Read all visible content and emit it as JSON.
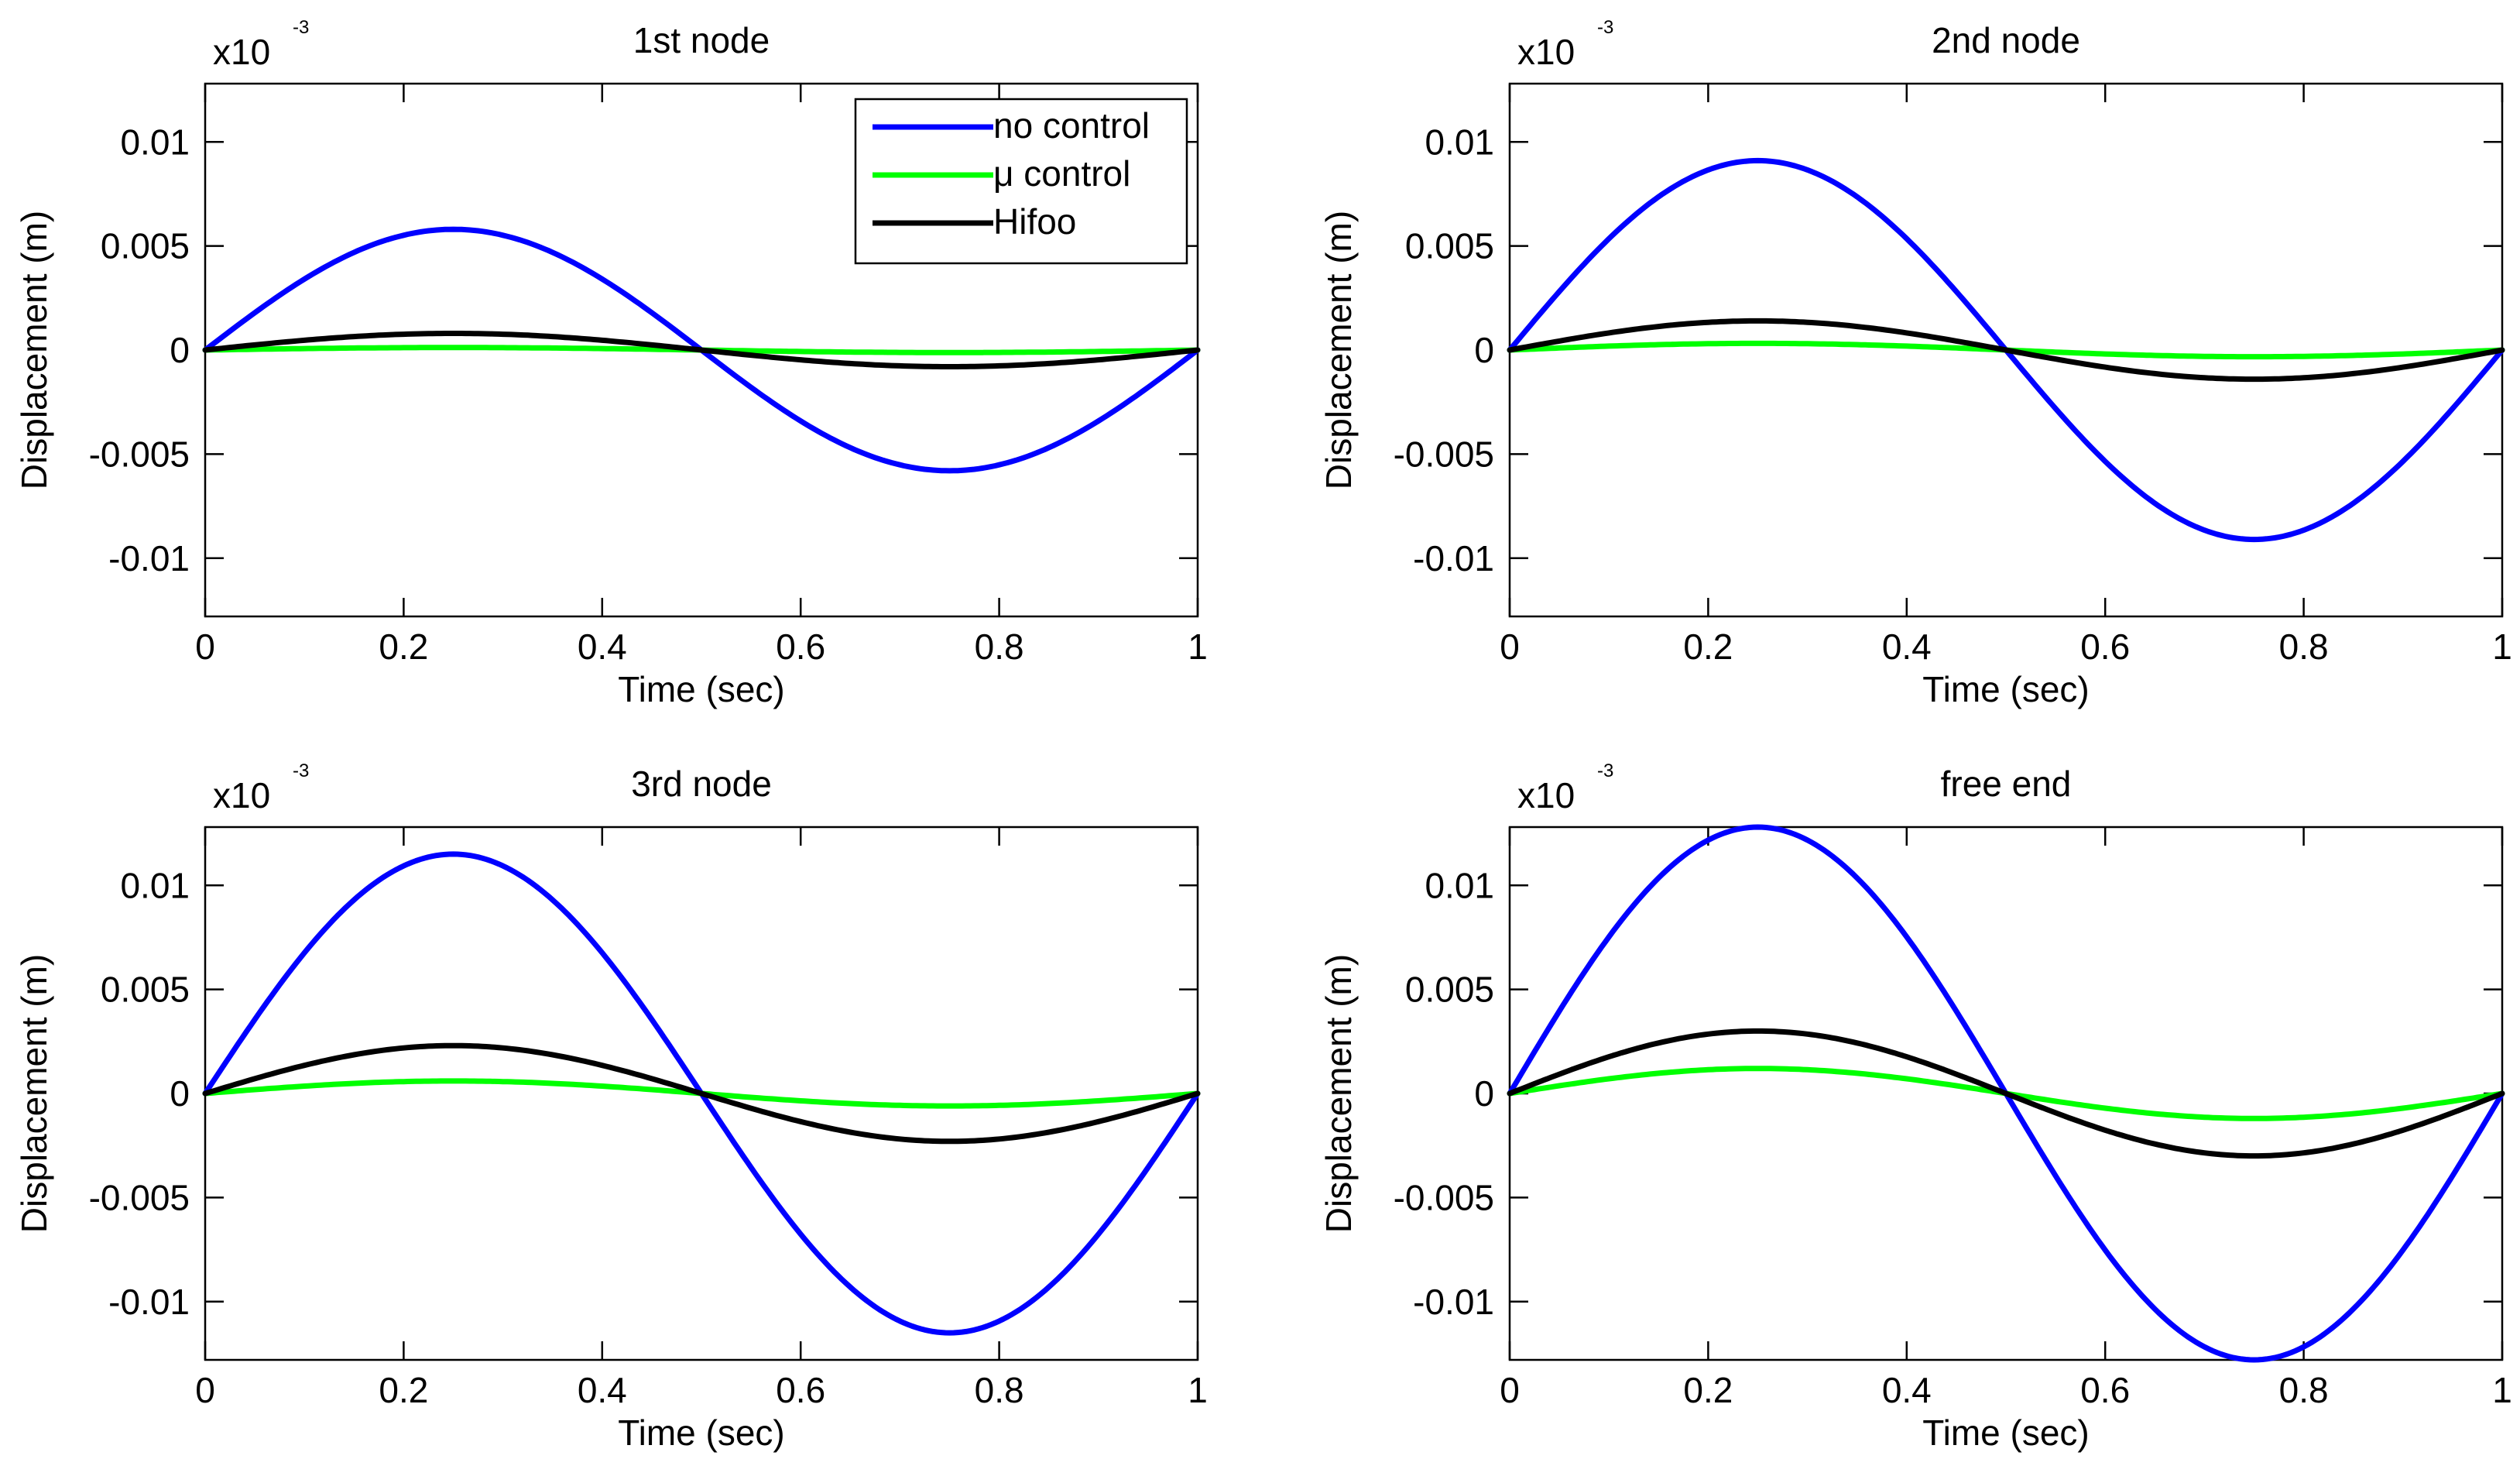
{
  "figure": {
    "background": "#ffffff"
  },
  "chart_data": [
    {
      "type": "line",
      "title": "1st node",
      "xlabel": "Time (sec)",
      "ylabel": "Displacement (m)",
      "exponent_label": "x10",
      "exponent": "-3",
      "xlim": [
        0,
        1
      ],
      "ylim": [
        -0.0128,
        0.0128
      ],
      "xticks": [
        0,
        0.2,
        0.4,
        0.6,
        0.8,
        1
      ],
      "xtick_labels": [
        "0",
        "0.2",
        "0.4",
        "0.6",
        "0.8",
        "1"
      ],
      "yticks": [
        0.01,
        0.005,
        0,
        -0.005,
        -0.01
      ],
      "ytick_labels": [
        "0.01",
        "0.005",
        "0",
        "-0.005",
        "-0.01"
      ],
      "grid": false,
      "legend": {
        "show": true,
        "location": "top-right"
      },
      "series": [
        {
          "name": "no control",
          "color": "#0000ff",
          "amplitude": 0.0058
        },
        {
          "name": "μ control",
          "color": "#00ff00",
          "amplitude": 0.00012
        },
        {
          "name": "Hifoo",
          "color": "#000000",
          "amplitude": 0.0008
        }
      ]
    },
    {
      "type": "line",
      "title": "2nd node",
      "xlabel": "Time (sec)",
      "ylabel": "Displacement (m)",
      "exponent_label": "x10",
      "exponent": "-3",
      "xlim": [
        0,
        1
      ],
      "ylim": [
        -0.0128,
        0.0128
      ],
      "xticks": [
        0,
        0.2,
        0.4,
        0.6,
        0.8,
        1
      ],
      "xtick_labels": [
        "0",
        "0.2",
        "0.4",
        "0.6",
        "0.8",
        "1"
      ],
      "yticks": [
        0.01,
        0.005,
        0,
        -0.005,
        -0.01
      ],
      "ytick_labels": [
        "0.01",
        "0.005",
        "0",
        "-0.005",
        "-0.01"
      ],
      "grid": false,
      "legend": {
        "show": false
      },
      "series": [
        {
          "name": "no control",
          "color": "#0000ff",
          "amplitude": 0.0091
        },
        {
          "name": "μ control",
          "color": "#00ff00",
          "amplitude": 0.00032
        },
        {
          "name": "Hifoo",
          "color": "#000000",
          "amplitude": 0.0014
        }
      ]
    },
    {
      "type": "line",
      "title": "3rd node",
      "xlabel": "Time (sec)",
      "ylabel": "Displacement (m)",
      "exponent_label": "x10",
      "exponent": "-3",
      "xlim": [
        0,
        1
      ],
      "ylim": [
        -0.0128,
        0.0128
      ],
      "xticks": [
        0,
        0.2,
        0.4,
        0.6,
        0.8,
        1
      ],
      "xtick_labels": [
        "0",
        "0.2",
        "0.4",
        "0.6",
        "0.8",
        "1"
      ],
      "yticks": [
        0.01,
        0.005,
        0,
        -0.005,
        -0.01
      ],
      "ytick_labels": [
        "0.01",
        "0.005",
        "0",
        "-0.005",
        "-0.01"
      ],
      "grid": false,
      "legend": {
        "show": false
      },
      "series": [
        {
          "name": "no control",
          "color": "#0000ff",
          "amplitude": 0.0115
        },
        {
          "name": "μ control",
          "color": "#00ff00",
          "amplitude": 0.0006
        },
        {
          "name": "Hifoo",
          "color": "#000000",
          "amplitude": 0.0023
        }
      ]
    },
    {
      "type": "line",
      "title": "free end",
      "xlabel": "Time (sec)",
      "ylabel": "Displacement (m)",
      "exponent_label": "x10",
      "exponent": "-3",
      "xlim": [
        0,
        1
      ],
      "ylim": [
        -0.0128,
        0.0128
      ],
      "xticks": [
        0,
        0.2,
        0.4,
        0.6,
        0.8,
        1
      ],
      "xtick_labels": [
        "0",
        "0.2",
        "0.4",
        "0.6",
        "0.8",
        "1"
      ],
      "yticks": [
        0.01,
        0.005,
        0,
        -0.005,
        -0.01
      ],
      "ytick_labels": [
        "0.01",
        "0.005",
        "0",
        "-0.005",
        "-0.01"
      ],
      "grid": false,
      "legend": {
        "show": false
      },
      "series": [
        {
          "name": "no control",
          "color": "#0000ff",
          "amplitude": 0.0128
        },
        {
          "name": "μ control",
          "color": "#00ff00",
          "amplitude": 0.0012
        },
        {
          "name": "Hifoo",
          "color": "#000000",
          "amplitude": 0.003
        }
      ]
    }
  ]
}
